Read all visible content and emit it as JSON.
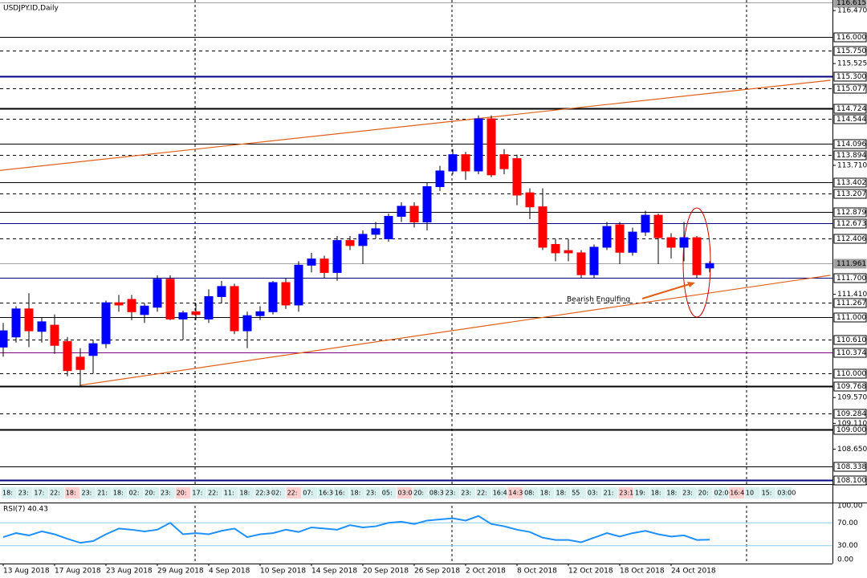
{
  "chart_data": [
    {
      "type": "candlestick",
      "title": "USDJPY.ID,Daily",
      "categories": [
        "13 Aug 2018",
        null,
        null,
        null,
        "17 Aug 2018",
        null,
        null,
        null,
        "23 Aug 2018",
        null,
        null,
        null,
        "29 Aug 2018",
        null,
        null,
        null,
        "4 Sep 2018",
        null,
        null,
        null,
        "10 Sep 2018",
        null,
        null,
        null,
        "14 Sep 2018",
        null,
        null,
        null,
        "20 Sep 2018",
        null,
        null,
        null,
        "26 Sep 2018",
        null,
        null,
        null,
        "2 Oct 2018",
        null,
        null,
        null,
        "8 Oct 2018",
        null,
        null,
        null,
        "12 Oct 2018",
        null,
        null,
        null,
        "18 Oct 2018",
        null,
        null,
        null,
        "24 Oct 2018",
        null,
        null,
        null
      ],
      "open": [
        110.47,
        110.65,
        111.15,
        110.75,
        110.86,
        110.57,
        110.29,
        110.32,
        110.53,
        111.26,
        111.32,
        111.05,
        111.18,
        111.68,
        110.97,
        111.1,
        110.97,
        111.37,
        111.55,
        110.76,
        111.03,
        111.1,
        111.62,
        111.22,
        111.93,
        112.04,
        111.8,
        112.37,
        112.28,
        112.48,
        112.4,
        112.8,
        112.98,
        112.7,
        113.33,
        113.61,
        113.9,
        113.61,
        114.54,
        113.9,
        113.83,
        113.22,
        112.97,
        112.3,
        112.19,
        112.15,
        111.76,
        112.25,
        112.65,
        112.16,
        112.52,
        112.82,
        112.42,
        112.25,
        112.42,
        111.88
      ],
      "high": [
        110.9,
        111.2,
        111.43,
        111.0,
        111.05,
        110.65,
        110.45,
        110.6,
        111.3,
        111.4,
        111.4,
        111.25,
        111.75,
        111.75,
        111.12,
        111.25,
        111.5,
        111.65,
        111.6,
        111.1,
        111.2,
        111.65,
        111.7,
        112.0,
        112.15,
        112.1,
        112.45,
        112.45,
        112.55,
        112.7,
        112.85,
        113.05,
        113.05,
        113.4,
        113.7,
        114.0,
        113.95,
        114.6,
        114.6,
        114.0,
        113.9,
        113.3,
        113.3,
        112.4,
        112.4,
        112.2,
        112.3,
        112.7,
        112.7,
        112.6,
        112.9,
        112.85,
        112.5,
        112.7,
        112.45,
        112.0
      ],
      "low": [
        110.3,
        110.55,
        110.47,
        110.55,
        110.35,
        109.95,
        109.77,
        110.0,
        110.45,
        111.1,
        110.95,
        110.9,
        111.1,
        110.95,
        110.6,
        110.95,
        110.9,
        111.25,
        110.7,
        110.45,
        110.95,
        111.05,
        111.15,
        111.1,
        111.8,
        111.7,
        111.65,
        112.2,
        111.95,
        112.4,
        112.35,
        112.7,
        112.6,
        112.55,
        113.25,
        113.55,
        113.45,
        113.55,
        113.5,
        113.55,
        113.0,
        112.75,
        112.2,
        112.0,
        112.0,
        111.7,
        111.7,
        112.2,
        111.95,
        112.1,
        112.45,
        111.95,
        112.05,
        112.0,
        111.7,
        111.8
      ],
      "close": [
        110.76,
        111.15,
        110.76,
        110.92,
        110.5,
        110.05,
        110.07,
        110.53,
        111.26,
        111.22,
        111.1,
        111.2,
        111.68,
        110.97,
        111.08,
        111.05,
        111.37,
        111.55,
        110.76,
        111.03,
        111.1,
        111.62,
        111.22,
        111.93,
        112.04,
        111.8,
        112.37,
        112.28,
        112.48,
        112.58,
        112.8,
        112.98,
        112.7,
        113.33,
        113.61,
        113.9,
        113.61,
        114.54,
        113.54,
        113.65,
        113.18,
        112.97,
        112.25,
        112.15,
        112.15,
        111.76,
        112.25,
        112.62,
        112.16,
        112.52,
        112.82,
        112.42,
        112.25,
        112.42,
        111.76,
        111.96
      ],
      "up_color": "#0000ff",
      "down_color": "#ff0000",
      "ylim": [
        108.027,
        116.658
      ],
      "yticks": [
        {
          "value": 116.47,
          "label": "116.470"
        },
        115.525,
        {
          "value": 113.71,
          "label": "113.710"
        },
        {
          "value": 111.41,
          "label": "111.410"
        },
        {
          "value": 109.57,
          "label": "109.570"
        },
        {
          "value": 109.11,
          "label": "109.110"
        },
        {
          "value": 108.65,
          "label": "108.650"
        }
      ],
      "levels": [
        {
          "value": 116.615,
          "label": "116.615",
          "style": "current",
          "color": "#a0a0a0"
        },
        {
          "value": 116.0,
          "label": "116.000",
          "style": "solid",
          "color": "#000000"
        },
        {
          "value": 115.75,
          "label": "115.750",
          "style": "dashed",
          "color": "#000000"
        },
        {
          "value": 115.3,
          "label": "115.300",
          "style": "thick",
          "color": "#000080"
        },
        {
          "value": 115.077,
          "label": "115.077",
          "style": "dashed",
          "color": "#000000"
        },
        {
          "value": 114.724,
          "label": "114.724",
          "style": "thick",
          "color": "#000000"
        },
        {
          "value": 114.544,
          "label": "114.544",
          "style": "dashed",
          "color": "#000000"
        },
        {
          "value": 114.096,
          "label": "114.096",
          "style": "solid",
          "color": "#000000"
        },
        {
          "value": 113.894,
          "label": "113.894",
          "style": "dashed",
          "color": "#000000"
        },
        {
          "value": 113.402,
          "label": "113.402",
          "style": "solid",
          "color": "#000000"
        },
        {
          "value": 113.207,
          "label": "113.207",
          "style": "dashed",
          "color": "#000000"
        },
        {
          "value": 112.879,
          "label": "112.879",
          "style": "solid",
          "color": "#000000"
        },
        {
          "value": 112.673,
          "label": "112.673",
          "style": "solid",
          "color": "#000080"
        },
        {
          "value": 112.406,
          "label": "112.406",
          "style": "dashed",
          "color": "#000000"
        },
        {
          "value": 111.961,
          "label": "111.961",
          "style": "current",
          "color": "#a0a0a0"
        },
        {
          "value": 111.7,
          "label": "111.700",
          "style": "solid",
          "color": "#000080"
        },
        {
          "value": 111.267,
          "label": "111.267",
          "style": "dashed",
          "color": "#000000"
        },
        {
          "value": 111.0,
          "label": "111.000",
          "style": "solid",
          "color": "#000000"
        },
        {
          "value": 110.61,
          "label": "110.610",
          "style": "dashed",
          "color": "#000000"
        },
        {
          "value": 110.374,
          "label": "110.374",
          "style": "solid",
          "color": "#800080"
        },
        {
          "value": 110.0,
          "label": "110.000",
          "style": "dashed",
          "color": "#000000"
        },
        {
          "value": 109.768,
          "label": "109.768",
          "style": "thick",
          "color": "#000000"
        },
        {
          "value": 109.284,
          "label": "109.284",
          "style": "dashed",
          "color": "#000000"
        },
        {
          "value": 109.0,
          "label": "109.000",
          "style": "thick",
          "color": "#000000"
        },
        {
          "value": 108.338,
          "label": "108.338",
          "style": "solid",
          "color": "#000000"
        },
        {
          "value": 108.1,
          "label": "108.100",
          "style": "thick",
          "color": "#000080"
        }
      ],
      "trendlines": [
        {
          "color": "#e0601a",
          "x": [
            -0.25,
            64.4
          ],
          "y": [
            113.62,
            115.227
          ]
        },
        {
          "color": "#e0601a",
          "x": [
            6,
            64.4
          ],
          "y": [
            109.79,
            111.75
          ]
        }
      ],
      "annotation": "Bearish Engulfing",
      "time_labels": [
        "18:",
        "23:",
        "17:",
        "22:",
        "18:",
        "23:",
        "21:",
        "18:",
        "02:",
        "20:",
        "23:",
        "20:",
        "17:",
        "22:",
        "11:",
        "18:",
        "22:30",
        "02:",
        "22:",
        "07:",
        "16:30",
        "16:",
        "18:",
        "23:",
        "05:",
        "03:00",
        "20:",
        "08:35",
        "23:",
        "23:",
        "22:",
        "16:45",
        "14:30",
        "08:",
        "18:",
        "18:",
        "55",
        "03:",
        "21:",
        "23:15",
        "19:",
        "18:",
        "18:",
        "23:",
        "20:",
        "02:00",
        "16:45",
        "10",
        "15:",
        "03:00"
      ]
    },
    {
      "type": "line",
      "title": "RSI(7) 40.43",
      "series": [
        {
          "name": "RSI(7)",
          "color": "#1e90ff",
          "values": [
            45,
            52,
            48,
            55,
            50,
            42,
            35,
            38,
            50,
            60,
            58,
            55,
            58,
            70,
            50,
            52,
            50,
            56,
            60,
            45,
            50,
            52,
            58,
            54,
            62,
            60,
            58,
            66,
            62,
            64,
            70,
            72,
            68,
            74,
            76,
            78,
            74,
            82,
            68,
            64,
            58,
            54,
            44,
            40,
            40,
            36,
            44,
            52,
            46,
            52,
            56,
            50,
            46,
            48,
            40,
            40.43
          ]
        }
      ],
      "ylim": [
        0,
        100
      ],
      "yticks": [
        {
          "value": 100,
          "label": "100.00"
        },
        {
          "value": 70,
          "label": "70.00"
        },
        {
          "value": 30,
          "label": "30.00"
        },
        {
          "value": 0,
          "label": "0.00"
        }
      ]
    }
  ]
}
